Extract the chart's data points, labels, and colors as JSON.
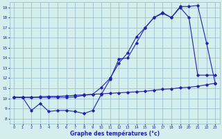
{
  "title": "Graphe des températures (°c)",
  "bg_color": "#d4eeed",
  "grid_color": "#9fbfcf",
  "line_color": "#2222aa",
  "xlim": [
    -0.5,
    23.5
  ],
  "ylim": [
    7.5,
    19.5
  ],
  "xticks": [
    0,
    1,
    2,
    3,
    4,
    5,
    6,
    7,
    8,
    9,
    10,
    11,
    12,
    13,
    14,
    15,
    16,
    17,
    18,
    19,
    20,
    21,
    22,
    23
  ],
  "yticks": [
    8,
    9,
    10,
    11,
    12,
    13,
    14,
    15,
    16,
    17,
    18,
    19
  ],
  "line1_x": [
    0,
    1,
    2,
    3,
    4,
    5,
    6,
    7,
    8,
    9,
    10,
    11,
    12,
    13,
    14,
    15,
    16,
    17,
    18,
    19,
    20,
    21,
    22,
    23
  ],
  "line1_y": [
    10.1,
    10.1,
    10.1,
    10.15,
    10.2,
    10.2,
    10.25,
    10.3,
    10.35,
    10.4,
    10.45,
    10.5,
    10.55,
    10.6,
    10.65,
    10.7,
    10.8,
    10.9,
    10.95,
    11.05,
    11.1,
    11.2,
    11.35,
    11.5
  ],
  "line2_x": [
    0,
    1,
    2,
    3,
    4,
    5,
    6,
    7,
    8,
    9,
    10,
    11,
    12,
    13,
    14,
    15,
    16,
    17,
    18,
    19,
    20,
    21,
    22,
    23
  ],
  "line2_y": [
    10.1,
    10.1,
    8.8,
    9.5,
    8.7,
    8.8,
    8.8,
    8.7,
    8.5,
    8.8,
    10.4,
    11.9,
    13.9,
    14.0,
    15.5,
    17.0,
    18.0,
    18.4,
    18.0,
    19.0,
    18.0,
    12.3,
    12.3,
    12.3
  ],
  "line3_x": [
    0,
    1,
    2,
    3,
    4,
    5,
    6,
    7,
    8,
    9,
    10,
    11,
    12,
    13,
    14,
    15,
    16,
    17,
    18,
    19,
    20,
    21,
    22,
    23
  ],
  "line3_y": [
    10.1,
    10.1,
    10.1,
    10.1,
    10.1,
    10.1,
    10.1,
    10.15,
    10.3,
    10.4,
    11.1,
    12.0,
    13.5,
    14.5,
    16.1,
    17.0,
    18.0,
    18.5,
    18.0,
    19.1,
    19.1,
    19.2,
    15.5,
    11.5
  ]
}
